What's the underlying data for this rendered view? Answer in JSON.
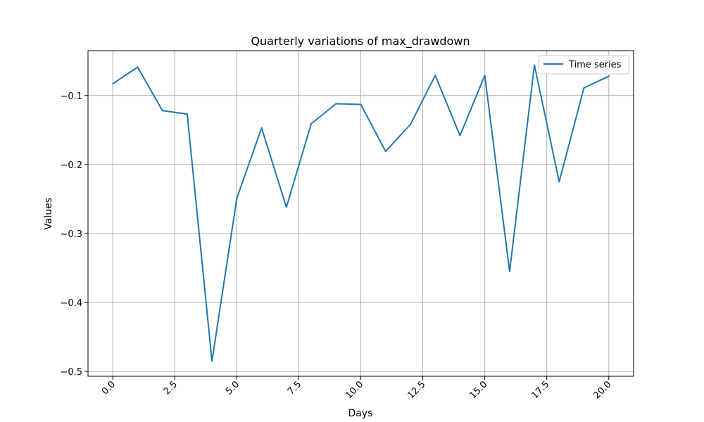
{
  "chart_data": {
    "type": "line",
    "title": "Quarterly variations of  max_drawdown",
    "xlabel": "Days",
    "ylabel": "Values",
    "xlim": [
      -1,
      21
    ],
    "ylim": [
      -0.507,
      -0.035
    ],
    "xticks": [
      0,
      2.5,
      5,
      7.5,
      10,
      12.5,
      15,
      17.5,
      20
    ],
    "xtick_labels": [
      "0.0",
      "2.5",
      "5.0",
      "7.5",
      "10.0",
      "12.5",
      "15.0",
      "17.5",
      "20.0"
    ],
    "yticks": [
      -0.5,
      -0.4,
      -0.3,
      -0.2,
      -0.1
    ],
    "ytick_labels": [
      "−0.5",
      "−0.4",
      "−0.3",
      "−0.2",
      "−0.1"
    ],
    "grid": true,
    "legend_position": "top-right",
    "series": [
      {
        "name": "Time series",
        "color": "#1f77b4",
        "x": [
          0,
          1,
          2,
          3,
          4,
          5,
          6,
          7,
          8,
          9,
          10,
          11,
          12,
          13,
          14,
          15,
          16,
          17,
          18,
          19,
          20
        ],
        "values": [
          -0.083,
          -0.059,
          -0.122,
          -0.127,
          -0.485,
          -0.249,
          -0.147,
          -0.262,
          -0.141,
          -0.112,
          -0.113,
          -0.181,
          -0.142,
          -0.071,
          -0.158,
          -0.071,
          -0.355,
          -0.056,
          -0.225,
          -0.089,
          -0.072
        ]
      }
    ]
  }
}
